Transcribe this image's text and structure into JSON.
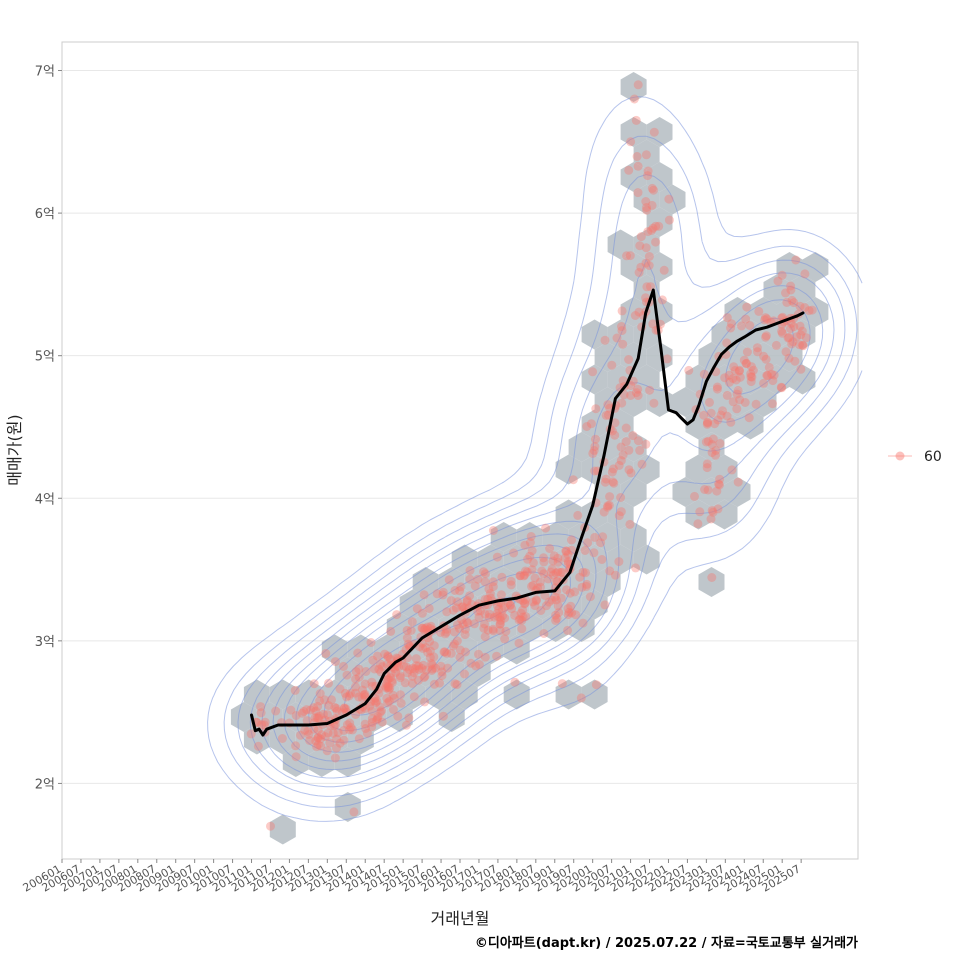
{
  "chart_data": {
    "type": "scatter",
    "xlabel": "거래년월",
    "ylabel": "매매가(원)",
    "xlim": [
      2006.0,
      2027.0
    ],
    "ylim": [
      1.47,
      7.2
    ],
    "grid": true,
    "legend_position": "right",
    "legend": [
      {
        "name": "60",
        "color": "#F8766D"
      }
    ],
    "x_ticks": [
      "200601",
      "200607",
      "200701",
      "200707",
      "200801",
      "200807",
      "200901",
      "200907",
      "201001",
      "201007",
      "201101",
      "201107",
      "201201",
      "201207",
      "201301",
      "201307",
      "201401",
      "201407",
      "201501",
      "201507",
      "201601",
      "201607",
      "201701",
      "201707",
      "201801",
      "201807",
      "201901",
      "201907",
      "202001",
      "202007",
      "202101",
      "202107",
      "202201",
      "202207",
      "202301",
      "202307",
      "202401",
      "202407",
      "202501",
      "202507"
    ],
    "y_ticks": [
      {
        "value": 2,
        "label": "2억"
      },
      {
        "value": 3,
        "label": "3억"
      },
      {
        "value": 4,
        "label": "4억"
      },
      {
        "value": 5,
        "label": "5억"
      },
      {
        "value": 6,
        "label": "6억"
      },
      {
        "value": 7,
        "label": "7억"
      }
    ],
    "point_color": "#F8766D",
    "hex_color": "#B4BCC2",
    "contour_color": "#7A93DC",
    "trend_line": {
      "color": "#000000",
      "x": [
        2011.0,
        2011.1,
        2011.2,
        2011.3,
        2011.4,
        2011.5,
        2011.7,
        2012.0,
        2012.5,
        2013.0,
        2013.5,
        2014.0,
        2014.3,
        2014.5,
        2014.8,
        2015.0,
        2015.5,
        2016.0,
        2016.5,
        2017.0,
        2017.5,
        2018.0,
        2018.5,
        2019.0,
        2019.4,
        2019.7,
        2020.0,
        2020.3,
        2020.6,
        2020.9,
        2021.2,
        2021.4,
        2021.6,
        2021.8,
        2022.0,
        2022.2,
        2022.35,
        2022.5,
        2022.65,
        2022.8,
        2023.0,
        2023.2,
        2023.4,
        2023.6,
        2023.8,
        2024.0,
        2024.3,
        2024.6,
        2024.9,
        2025.2,
        2025.4,
        2025.55
      ],
      "y": [
        2.48,
        2.37,
        2.38,
        2.34,
        2.38,
        2.39,
        2.41,
        2.41,
        2.41,
        2.42,
        2.48,
        2.56,
        2.66,
        2.77,
        2.85,
        2.88,
        3.02,
        3.1,
        3.18,
        3.25,
        3.28,
        3.3,
        3.34,
        3.35,
        3.48,
        3.72,
        3.95,
        4.3,
        4.7,
        4.8,
        4.98,
        5.3,
        5.46,
        5.05,
        4.62,
        4.6,
        4.56,
        4.52,
        4.55,
        4.65,
        4.82,
        4.92,
        5.01,
        5.06,
        5.1,
        5.13,
        5.18,
        5.2,
        5.23,
        5.26,
        5.28,
        5.3
      ]
    },
    "clusters": [
      {
        "x": 2011.3,
        "y": 2.4,
        "sx": 0.15,
        "sy": 0.1,
        "n": 10
      },
      {
        "x": 2012.3,
        "y": 2.45,
        "sx": 0.4,
        "sy": 0.1,
        "n": 20
      },
      {
        "x": 2013.0,
        "y": 2.38,
        "sx": 0.3,
        "sy": 0.1,
        "n": 45
      },
      {
        "x": 2013.8,
        "y": 2.55,
        "sx": 0.5,
        "sy": 0.14,
        "n": 60
      },
      {
        "x": 2014.7,
        "y": 2.75,
        "sx": 0.5,
        "sy": 0.14,
        "n": 70
      },
      {
        "x": 2015.6,
        "y": 2.95,
        "sx": 0.5,
        "sy": 0.16,
        "n": 70
      },
      {
        "x": 2016.6,
        "y": 3.12,
        "sx": 0.6,
        "sy": 0.16,
        "n": 65
      },
      {
        "x": 2017.6,
        "y": 3.25,
        "sx": 0.5,
        "sy": 0.16,
        "n": 55
      },
      {
        "x": 2018.6,
        "y": 3.35,
        "sx": 0.5,
        "sy": 0.18,
        "n": 55
      },
      {
        "x": 2019.4,
        "y": 3.45,
        "sx": 0.35,
        "sy": 0.18,
        "n": 45
      },
      {
        "x": 2020.3,
        "y": 4.1,
        "sx": 0.35,
        "sy": 0.35,
        "n": 45
      },
      {
        "x": 2020.8,
        "y": 4.6,
        "sx": 0.3,
        "sy": 0.35,
        "n": 40
      },
      {
        "x": 2021.4,
        "y": 5.3,
        "sx": 0.3,
        "sy": 0.35,
        "n": 30
      },
      {
        "x": 2021.5,
        "y": 6.1,
        "sx": 0.3,
        "sy": 0.35,
        "n": 20
      },
      {
        "x": 2023.2,
        "y": 4.3,
        "sx": 0.3,
        "sy": 0.3,
        "n": 35
      },
      {
        "x": 2023.7,
        "y": 4.85,
        "sx": 0.4,
        "sy": 0.2,
        "n": 40
      },
      {
        "x": 2024.6,
        "y": 5.05,
        "sx": 0.4,
        "sy": 0.2,
        "n": 40
      },
      {
        "x": 2025.2,
        "y": 5.25,
        "sx": 0.25,
        "sy": 0.18,
        "n": 35
      }
    ],
    "outliers": [
      {
        "x": 2011.5,
        "y": 1.7
      },
      {
        "x": 2013.7,
        "y": 1.8
      },
      {
        "x": 2021.2,
        "y": 6.9
      },
      {
        "x": 2021.1,
        "y": 6.8
      },
      {
        "x": 2021.15,
        "y": 6.65
      },
      {
        "x": 2021.0,
        "y": 6.5
      },
      {
        "x": 2020.95,
        "y": 6.3
      },
      {
        "x": 2019.7,
        "y": 2.6
      },
      {
        "x": 2019.2,
        "y": 2.7
      }
    ]
  },
  "caption": "©디아파트(dapt.kr) / 2025.07.22 / 자료=국토교통부 실거래가"
}
